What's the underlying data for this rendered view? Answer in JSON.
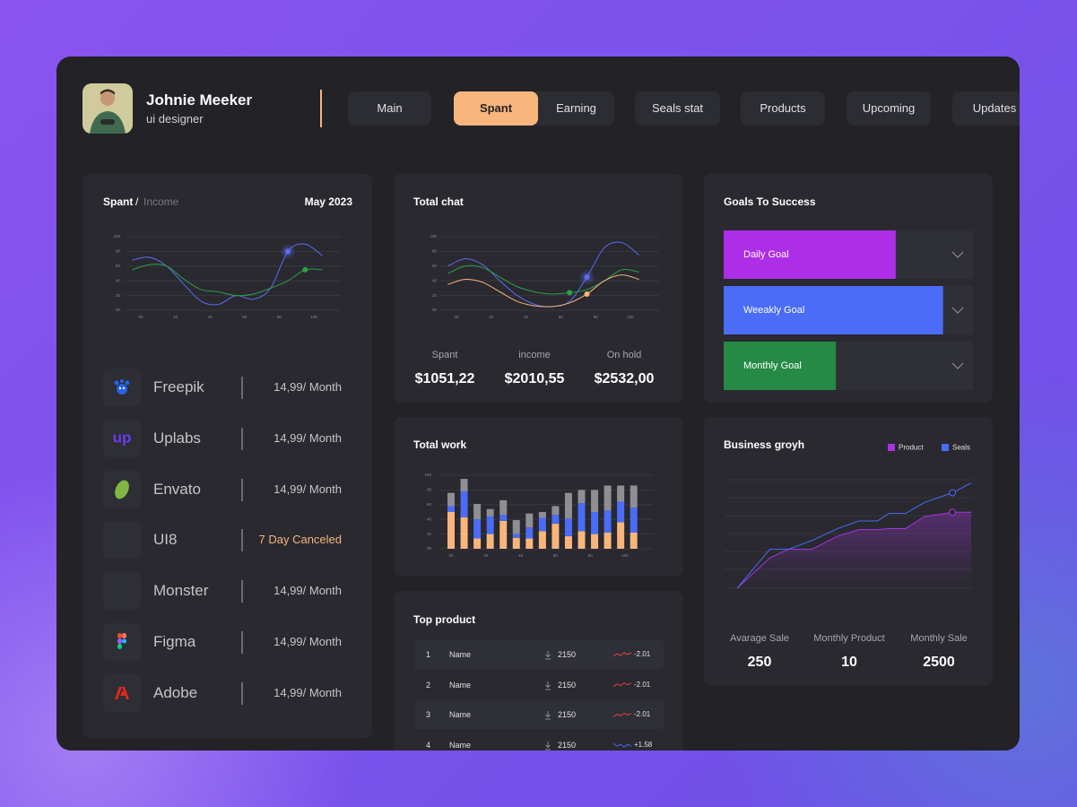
{
  "profile": {
    "name": "Johnie Meeker",
    "role": "ui designer"
  },
  "tabs": [
    "Main",
    "Spant",
    "Earning",
    "Seals stat",
    "Products",
    "Upcoming",
    "Updates"
  ],
  "active_tab": 1,
  "spant_card": {
    "title": "Spant",
    "separator": "/",
    "subtitle": "Income",
    "date": "May 2023",
    "chart": {
      "type": "line",
      "smooth": true,
      "grid": true,
      "x": [
        -5,
        5,
        15,
        25,
        35,
        45,
        55,
        65,
        75,
        85,
        95,
        105
      ],
      "xlim": [
        -5,
        105
      ],
      "ylim": [
        0,
        100
      ],
      "xticks": [
        {
          "value": 0,
          "label": "00"
        },
        20,
        40,
        60,
        80,
        100
      ],
      "yticks": [
        {
          "value": 0,
          "label": "00"
        },
        20,
        40,
        60,
        80,
        100
      ],
      "series": [
        {
          "color": "#5a6df2",
          "values": [
            68,
            72,
            60,
            35,
            12,
            8,
            20,
            15,
            30,
            80,
            90,
            74
          ],
          "marker_index": 9
        },
        {
          "color": "#2e9e4f",
          "values": [
            55,
            62,
            60,
            42,
            28,
            25,
            20,
            22,
            30,
            40,
            55,
            55
          ],
          "marker_index": 10
        }
      ]
    }
  },
  "services": [
    {
      "name": "Freepik",
      "price": "14,99/ Month"
    },
    {
      "name": "Uplabs",
      "logo": "up",
      "price": "14,99/ Month"
    },
    {
      "name": "Envato",
      "price": "14,99/ Month"
    },
    {
      "name": "UI8",
      "price": "7 Day Canceled",
      "canceled": true
    },
    {
      "name": "Monster",
      "price": "14,99/ Month"
    },
    {
      "name": "Figma",
      "price": "14,99/ Month"
    },
    {
      "name": "Adobe",
      "price": "14,99/ Month"
    }
  ],
  "total_chat": {
    "title": "Total chat",
    "chart": {
      "type": "line",
      "smooth": true,
      "grid": true,
      "x": [
        -5,
        5,
        15,
        25,
        35,
        45,
        55,
        65,
        75,
        85,
        95,
        105
      ],
      "xlim": [
        -5,
        105
      ],
      "ylim": [
        0,
        100
      ],
      "xticks": [
        {
          "value": 0,
          "label": "00"
        },
        20,
        40,
        60,
        80,
        100
      ],
      "yticks": [
        {
          "value": 0,
          "label": "00"
        },
        20,
        40,
        60,
        80,
        100
      ],
      "series": [
        {
          "color": "#5a6df2",
          "values": [
            60,
            70,
            62,
            40,
            20,
            8,
            5,
            12,
            45,
            85,
            92,
            75
          ],
          "marker_index": 8
        },
        {
          "color": "#2e9e4f",
          "values": [
            50,
            60,
            58,
            45,
            32,
            25,
            22,
            24,
            28,
            40,
            55,
            52
          ],
          "marker_index": 7
        },
        {
          "color": "#f8b57c",
          "values": [
            35,
            42,
            38,
            25,
            12,
            6,
            5,
            10,
            22,
            40,
            48,
            42
          ],
          "marker_index": 8
        }
      ]
    },
    "stats": [
      {
        "label": "Spant",
        "value": "$1051,22"
      },
      {
        "label": "income",
        "value": "$2010,55"
      },
      {
        "label": "On hold",
        "value": "$2532,00"
      }
    ]
  },
  "total_work": {
    "title": "Total work",
    "chart": {
      "type": "bar",
      "stacked": true,
      "grid": true,
      "x": [
        0,
        7.5,
        15,
        22.5,
        30,
        37.5,
        45,
        52.5,
        60,
        67.5,
        75,
        82.5,
        90,
        97.5,
        105
      ],
      "xlim": [
        -5,
        110
      ],
      "ylim": [
        0,
        100
      ],
      "xticks": [
        {
          "value": 0,
          "label": "00"
        },
        20,
        40,
        60,
        80,
        100
      ],
      "yticks": [
        {
          "value": 0,
          "label": "00"
        },
        20,
        40,
        60,
        80,
        100
      ],
      "series": [
        {
          "color": "#f8b57c",
          "values": [
            50,
            43,
            14,
            20,
            38,
            15,
            14,
            24,
            34,
            17,
            24,
            20,
            22,
            36,
            22
          ]
        },
        {
          "color": "#4a6cf7",
          "values": [
            8,
            35,
            26,
            24,
            8,
            5,
            15,
            18,
            12,
            24,
            38,
            30,
            30,
            28,
            34
          ]
        },
        {
          "color": "#8e8e93",
          "values": [
            18,
            17,
            21,
            10,
            20,
            19,
            19,
            8,
            12,
            35,
            18,
            30,
            34,
            22,
            30
          ]
        }
      ]
    }
  },
  "top_product": {
    "title": "Top product",
    "rows": [
      {
        "rank": 1,
        "name": "Name",
        "downloads": 2150,
        "change": "-2.01",
        "trend": "down"
      },
      {
        "rank": 2,
        "name": "Name",
        "downloads": 2150,
        "change": "-2.01",
        "trend": "down"
      },
      {
        "rank": 3,
        "name": "Name",
        "downloads": 2150,
        "change": "-2.01",
        "trend": "down"
      },
      {
        "rank": 4,
        "name": "Name",
        "downloads": 2150,
        "change": "+1.58",
        "trend": "up"
      }
    ]
  },
  "goals": {
    "title": "Goals To Success",
    "items": [
      {
        "label": "Daily Goal",
        "progress": 69,
        "color": "#ad2ee6"
      },
      {
        "label": "Weeakly Goal",
        "progress": 88,
        "color": "#4a6cf7"
      },
      {
        "label": "Monthly Goal",
        "progress": 45,
        "color": "#268a47"
      }
    ]
  },
  "business": {
    "title": "Business groyh",
    "chart": {
      "type": "line",
      "smooth": false,
      "legend": "top-right",
      "marker_style": "hollow",
      "x": [
        0,
        14,
        22,
        32,
        43,
        52,
        60,
        65,
        72,
        80,
        92,
        100
      ],
      "xlim": [
        0,
        100
      ],
      "ylim": [
        0,
        100
      ],
      "series": [
        {
          "name": "Product",
          "color": "#a435e0",
          "values": [
            0,
            28,
            36,
            36,
            48,
            54,
            54,
            55,
            55,
            66,
            70,
            70
          ],
          "marker_index": 10,
          "area": true
        },
        {
          "name": "Seals",
          "color": "#4a6cf7",
          "values": [
            0,
            36,
            36,
            44,
            55,
            62,
            62,
            69,
            69,
            79,
            88,
            97
          ],
          "marker_index": 10
        }
      ]
    },
    "stats": [
      {
        "label": "Avarage Sale",
        "value": 250
      },
      {
        "label": "Monthly Product",
        "value": 10
      },
      {
        "label": "Monthly Sale",
        "value": 2500
      }
    ]
  }
}
